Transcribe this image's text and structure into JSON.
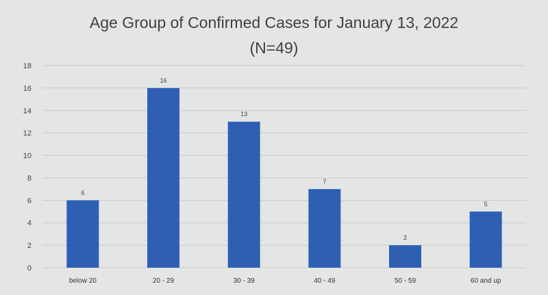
{
  "chart_data": {
    "type": "bar",
    "title": "Age Group of Confirmed Cases for January 13, 2022",
    "subtitle": "(N=49)",
    "categories": [
      "below 20",
      "20 - 29",
      "30 - 39",
      "40 - 49",
      "50 - 59",
      "60 and up"
    ],
    "values": [
      6,
      16,
      13,
      7,
      2,
      5
    ],
    "data_labels": [
      "6",
      "16",
      "13",
      "7",
      "2",
      "5"
    ],
    "ylim": [
      0,
      18
    ],
    "yticks": [
      0,
      2,
      4,
      6,
      8,
      10,
      12,
      14,
      16,
      18
    ],
    "xlabel": "",
    "ylabel": "",
    "grid": true,
    "legend": "none",
    "bar_color": "#2e5fb3",
    "grid_color": "#c9cccb"
  }
}
